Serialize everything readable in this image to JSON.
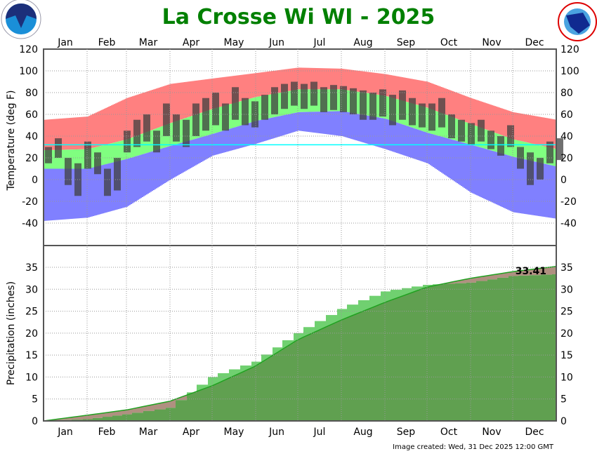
{
  "title": "La Crosse Wi WI - 2025",
  "footer": "Image created: Wed, 31 Dec 2025 12:00 GMT",
  "logos": {
    "left": "NOAA",
    "right": "NATIONAL WEATHER SERVICE"
  },
  "chart_data": [
    {
      "type": "bar",
      "panel": "temperature",
      "ylabel": "Temperature (deg F)",
      "ylim": [
        -60,
        120
      ],
      "yticks": [
        -40,
        -20,
        0,
        20,
        40,
        60,
        80,
        100,
        120
      ],
      "months": [
        "Jan",
        "Feb",
        "Mar",
        "Apr",
        "May",
        "Jun",
        "Jul",
        "Aug",
        "Sep",
        "Oct",
        "Nov",
        "Dec"
      ],
      "freezing_line": 32,
      "colors": {
        "record_high": "#ff8080",
        "normal": "#80ff80",
        "record_low": "#8080ff",
        "observed": "#404040",
        "freezing": "#00ffff"
      },
      "band_months_start": [
        "Jan 1",
        "Feb 1",
        "Mar 1",
        "Apr 1",
        "May 1",
        "Jun 1",
        "Jul 1",
        "Aug 1",
        "Sep 1",
        "Oct 1",
        "Nov 1",
        "Dec 1",
        "Dec 31"
      ],
      "record_high": [
        55,
        58,
        75,
        88,
        93,
        98,
        103,
        102,
        97,
        90,
        75,
        62,
        55
      ],
      "normal_high": [
        27,
        28,
        37,
        52,
        65,
        76,
        83,
        83,
        77,
        66,
        51,
        37,
        28
      ],
      "normal_low": [
        10,
        10,
        19,
        31,
        42,
        54,
        62,
        63,
        56,
        43,
        32,
        21,
        12
      ],
      "record_low": [
        -38,
        -35,
        -25,
        0,
        22,
        33,
        45,
        40,
        28,
        15,
        -12,
        -30,
        -36
      ],
      "observed_weekly_high": [
        30,
        38,
        20,
        15,
        35,
        25,
        10,
        20,
        45,
        55,
        60,
        45,
        70,
        60,
        55,
        70,
        75,
        80,
        70,
        85,
        75,
        72,
        78,
        85,
        88,
        90,
        88,
        90,
        85,
        87,
        86,
        84,
        82,
        80,
        83,
        78,
        82,
        75,
        70,
        70,
        75,
        60,
        55,
        52,
        55,
        45,
        40,
        50,
        30,
        25,
        20,
        35,
        38
      ],
      "observed_weekly_low": [
        15,
        20,
        -5,
        -15,
        10,
        5,
        -15,
        -10,
        25,
        30,
        35,
        25,
        40,
        35,
        30,
        40,
        45,
        50,
        45,
        55,
        50,
        48,
        55,
        60,
        65,
        68,
        65,
        68,
        62,
        64,
        62,
        60,
        55,
        55,
        58,
        50,
        55,
        50,
        48,
        45,
        48,
        38,
        35,
        32,
        35,
        28,
        22,
        30,
        10,
        -5,
        0,
        15,
        18
      ]
    },
    {
      "type": "area",
      "panel": "precipitation",
      "ylabel": "Precipitation (inches)",
      "ylim": [
        0,
        35
      ],
      "yticks": [
        0,
        5,
        10,
        15,
        20,
        25,
        30,
        35
      ],
      "months": [
        "Jan",
        "Feb",
        "Mar",
        "Apr",
        "May",
        "Jun",
        "Jul",
        "Aug",
        "Sep",
        "Oct",
        "Nov",
        "Dec"
      ],
      "dates": [
        "Jan 1",
        "Feb 1",
        "Mar 1",
        "Apr 1",
        "May 1",
        "Jun 1",
        "Jul 1",
        "Aug 1",
        "Sep 1",
        "Oct 1",
        "Nov 1",
        "Dec 1",
        "Dec 31"
      ],
      "observed_cumulative": [
        0,
        0.4,
        1.5,
        3.0,
        10.0,
        13.5,
        20.0,
        25.5,
        29.5,
        31.0,
        31.5,
        33.0,
        33.41
      ],
      "normal_cumulative": [
        0,
        1.3,
        2.5,
        4.5,
        8.0,
        12.5,
        18.5,
        23.0,
        27.0,
        30.5,
        32.5,
        34.0,
        35.2
      ],
      "total_label": "33.41",
      "colors": {
        "observed_above": "#70d070",
        "normal_above": "#b09080",
        "common": "#60a050",
        "normal_line": "#20a020"
      }
    }
  ]
}
